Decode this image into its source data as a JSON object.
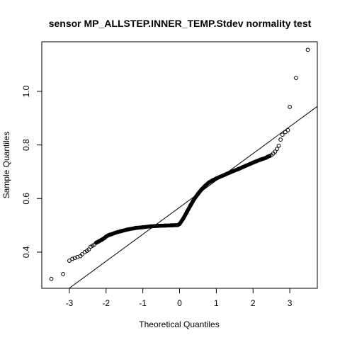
{
  "chart_data": {
    "type": "scatter",
    "title": "sensor MP_ALLSTEP.INNER_TEMP.Stdev normality test",
    "xlabel": "Theoretical Quantiles",
    "ylabel": "Sample Quantiles",
    "xlim": [
      -3.75,
      3.75
    ],
    "ylim": [
      0.265,
      1.185
    ],
    "x_ticks": [
      -3,
      -2,
      -1,
      0,
      1,
      2,
      3
    ],
    "x_tick_labels": [
      "-3",
      "-2",
      "-1",
      "0",
      "1",
      "2",
      "3"
    ],
    "y_ticks": [
      0.4,
      0.6,
      0.8,
      1.0
    ],
    "y_tick_labels": [
      "0.4",
      "0.6",
      "0.8",
      "1.0"
    ],
    "grid": false,
    "reference_line": {
      "intercept": 0.567,
      "slope": 0.1005
    },
    "series": [
      {
        "marker": "open-circle",
        "color": "#000000",
        "x": [
          -3.49,
          -3.17,
          -3.0,
          -2.92,
          -2.85,
          -2.78,
          -2.7,
          -2.65,
          -2.58,
          -2.52,
          -2.47,
          -2.42,
          -2.37,
          -2.32,
          -2.27,
          -2.2,
          -2.12,
          -2.05,
          -2.0,
          -1.95,
          -1.9,
          -1.85,
          -1.75,
          -1.6,
          -1.4,
          -1.2,
          -1.0,
          -0.8,
          -0.6,
          -0.4,
          -0.2,
          -0.05,
          0.0,
          0.1,
          0.2,
          0.3,
          0.4,
          0.5,
          0.6,
          0.7,
          0.8,
          0.9,
          1.0,
          1.2,
          1.4,
          1.6,
          1.8,
          2.0,
          2.2,
          2.35,
          2.4,
          2.45,
          2.5,
          2.55,
          2.6,
          2.65,
          2.7,
          2.75,
          2.8,
          2.88,
          2.95,
          3.0,
          3.17,
          3.49
        ],
        "y": [
          0.3,
          0.318,
          0.368,
          0.375,
          0.378,
          0.382,
          0.385,
          0.392,
          0.4,
          0.405,
          0.41,
          0.42,
          0.424,
          0.428,
          0.435,
          0.44,
          0.446,
          0.452,
          0.458,
          0.462,
          0.465,
          0.467,
          0.472,
          0.478,
          0.485,
          0.49,
          0.493,
          0.496,
          0.498,
          0.499,
          0.5,
          0.501,
          0.505,
          0.525,
          0.55,
          0.575,
          0.598,
          0.617,
          0.634,
          0.648,
          0.66,
          0.668,
          0.675,
          0.687,
          0.699,
          0.71,
          0.722,
          0.734,
          0.745,
          0.752,
          0.756,
          0.759,
          0.762,
          0.768,
          0.775,
          0.785,
          0.797,
          0.82,
          0.838,
          0.848,
          0.855,
          0.942,
          1.05,
          1.155
        ]
      }
    ]
  }
}
